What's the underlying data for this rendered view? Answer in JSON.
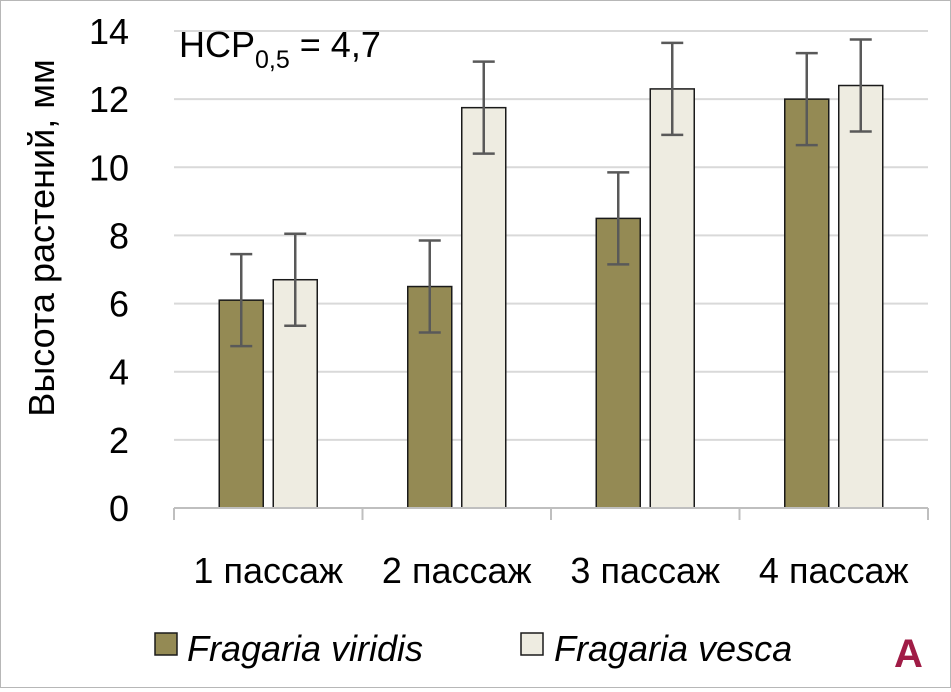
{
  "chart_data": {
    "type": "bar",
    "title": "",
    "annotation": {
      "prefix": "НСР",
      "subscript": "0,5",
      "suffix": " = 4,7"
    },
    "panel_label": "A",
    "ylabel": "Высота растений, мм",
    "xlabel": "",
    "ylim": [
      0,
      14
    ],
    "yticks": [
      0,
      2,
      4,
      6,
      8,
      10,
      12,
      14
    ],
    "grid": true,
    "legend_position": "bottom",
    "categories": [
      "1 пассаж",
      "2 пассаж",
      "3 пассаж",
      "4 пассаж"
    ],
    "series": [
      {
        "name": "Fragaria viridis",
        "color": "#948a54",
        "values": [
          6.1,
          6.5,
          8.5,
          12.0
        ],
        "error": [
          1.35,
          1.35,
          1.35,
          1.35
        ]
      },
      {
        "name": "Fragaria vesca",
        "color": "#eeece1",
        "values": [
          6.7,
          11.75,
          12.3,
          12.4
        ],
        "error": [
          1.35,
          1.35,
          1.35,
          1.35
        ]
      }
    ],
    "colors": {
      "bar_stroke": "#1a1a1a",
      "error_bar": "#595959",
      "grid": "#d9d9d9",
      "axis": "#bfbfbf",
      "panel_label": "#a01c46"
    }
  }
}
